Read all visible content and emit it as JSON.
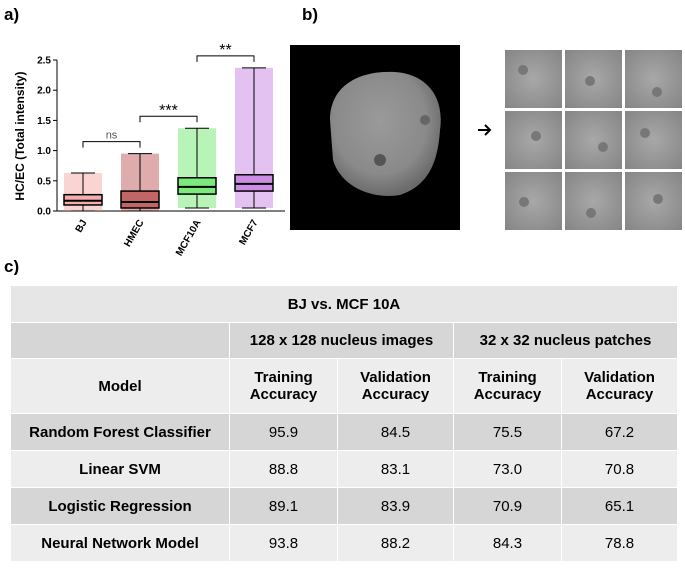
{
  "panel_labels": [
    "a)",
    "b)",
    "c)"
  ],
  "chart_data": {
    "type": "box",
    "ylabel": "HC/EC (Total intensity)",
    "categories": [
      "BJ",
      "HMEC",
      "MCF10A",
      "MCF7"
    ],
    "colors": [
      "#f08080",
      "#a01010",
      "#33dd33",
      "#b04fd8"
    ],
    "min": [
      0.0,
      0.0,
      0.05,
      0.05
    ],
    "q1": [
      0.1,
      0.05,
      0.28,
      0.33
    ],
    "median": [
      0.17,
      0.15,
      0.4,
      0.45
    ],
    "q3": [
      0.27,
      0.33,
      0.55,
      0.6
    ],
    "max": [
      0.63,
      0.95,
      1.37,
      2.37
    ],
    "ylim": [
      0,
      2.5
    ],
    "yticks": [
      {
        "value": 0,
        "label": "0.0"
      },
      {
        "value": 0.5,
        "label": "0.5"
      },
      {
        "value": 1,
        "label": "1.0"
      },
      {
        "value": 1.5,
        "label": "1.5"
      },
      {
        "value": 2,
        "label": "2.0"
      },
      {
        "value": 2.5,
        "label": "2.5"
      }
    ],
    "annotations": [
      "ns",
      "***",
      "**"
    ]
  },
  "table": {
    "title": "BJ vs. MCF 10A",
    "groups": [
      "128 x 128 nucleus images",
      "32 x 32 nucleus  patches"
    ],
    "header": [
      "Model",
      "Training Accuracy",
      "Validation Accuracy",
      "Training Accuracy",
      "Validation Accuracy"
    ],
    "rows": [
      [
        "Random Forest Classifier",
        "95.9",
        "84.5",
        "75.5",
        "67.2"
      ],
      [
        "Linear SVM",
        "88.8",
        "83.1",
        "73.0",
        "70.8"
      ],
      [
        "Logistic Regression",
        "89.1",
        "83.9",
        "70.9",
        "65.1"
      ],
      [
        "Neural Network Model",
        "93.8",
        "88.2",
        "84.3",
        "78.8"
      ]
    ]
  }
}
